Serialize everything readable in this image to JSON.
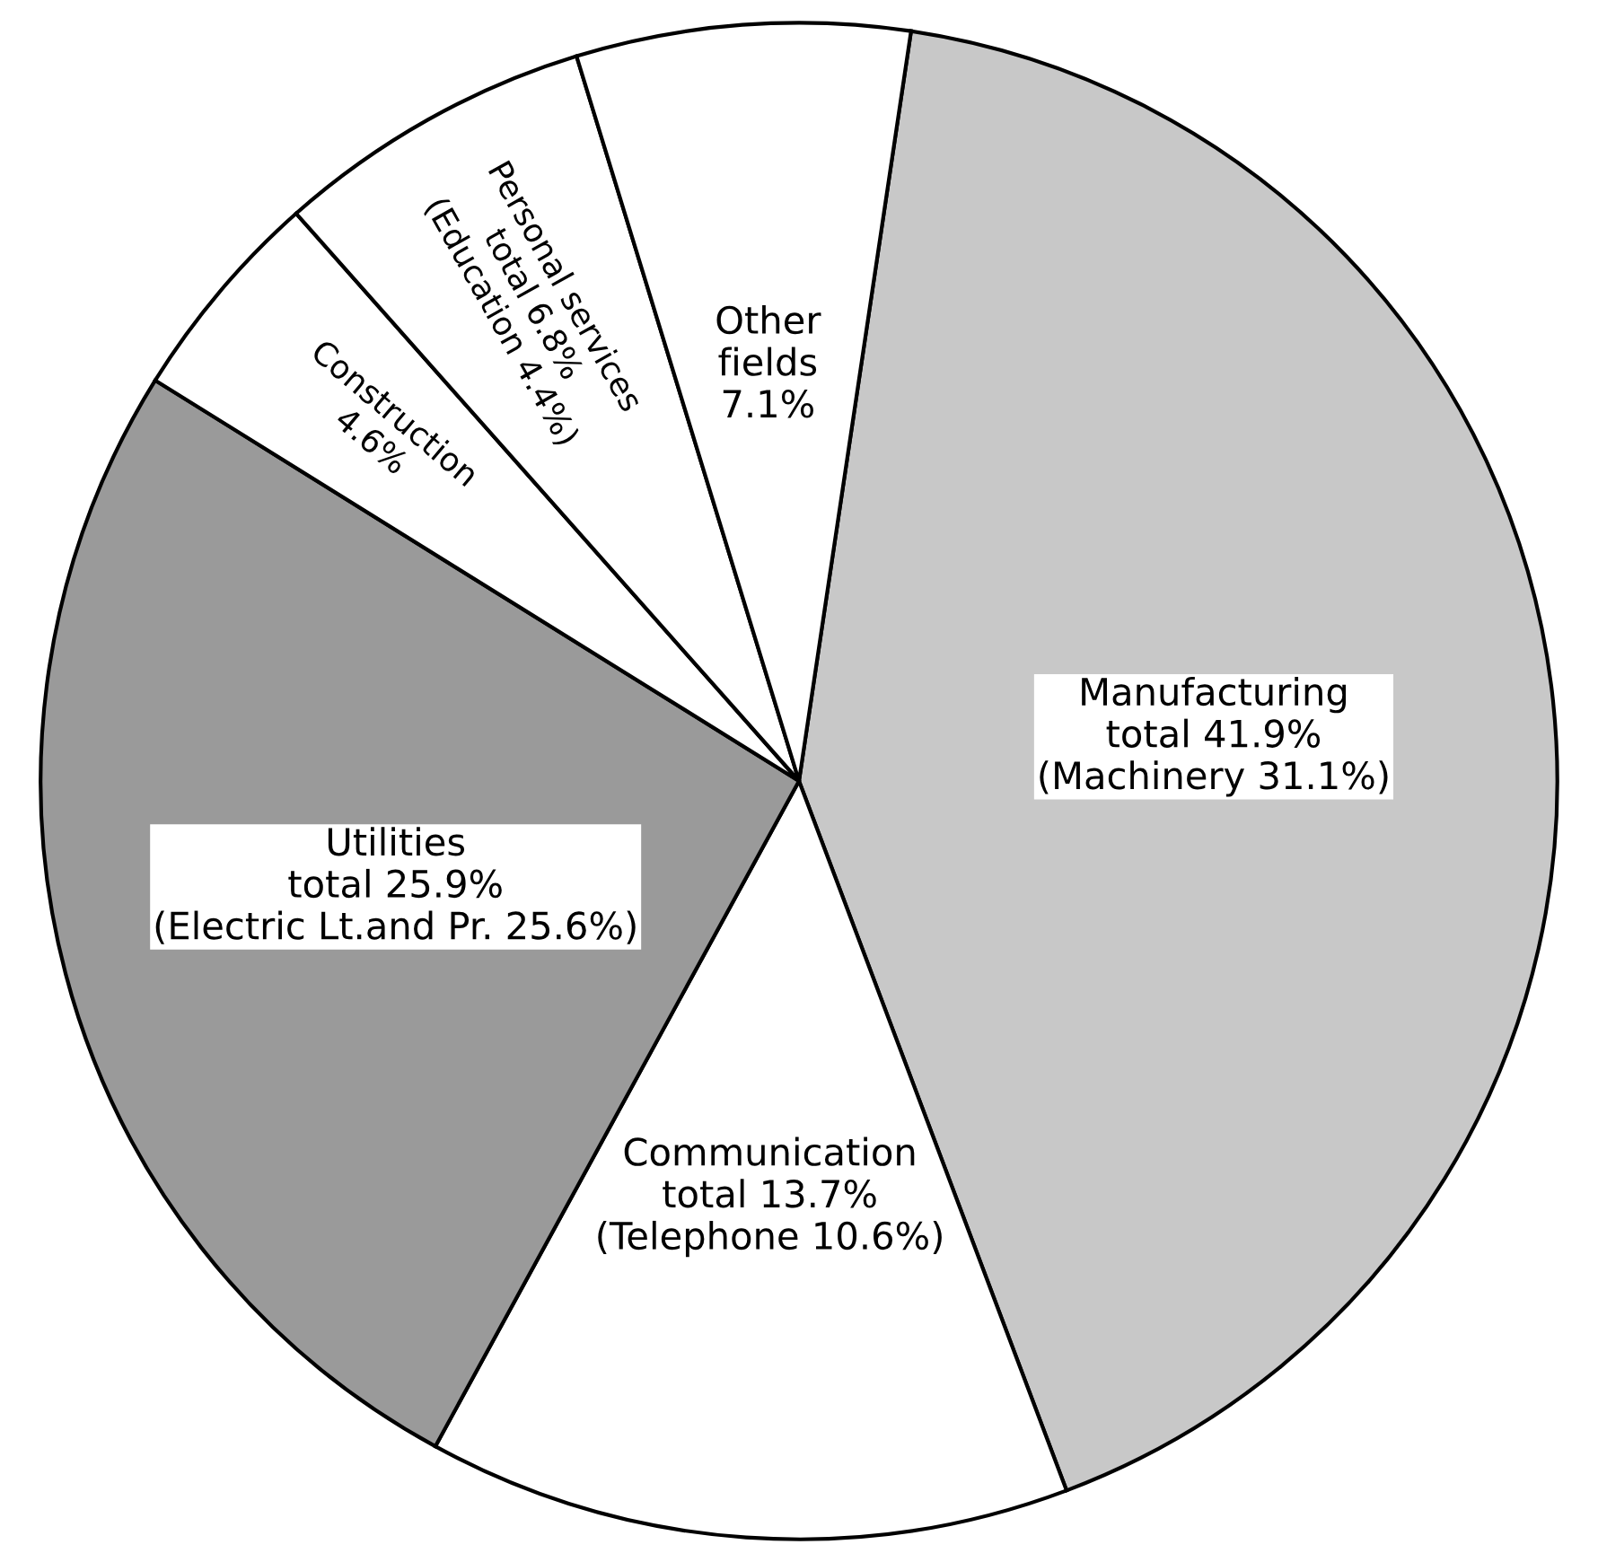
{
  "chart_data": {
    "type": "pie",
    "categories": [
      "Manufacturing\ntotal 41.9%\n(Machinery 31.1%)",
      "Communication\ntotal 13.7%\n(Telephone 10.6%)",
      "Utilities\ntotal 25.9%\n(Electric Lt.and Pr. 25.6%)",
      "Construction\n4.6%",
      "Personal services\ntotal 6.8%\n(Education 4.4%)",
      "Other\nfields\n7.1%"
    ],
    "values": [
      41.9,
      13.7,
      25.9,
      4.6,
      6.8,
      7.1
    ],
    "colors": [
      "#c8c8c8",
      "#ffffff",
      "#9a9a9a",
      "#ffffff",
      "#ffffff",
      "#ffffff"
    ],
    "legend": false
  }
}
